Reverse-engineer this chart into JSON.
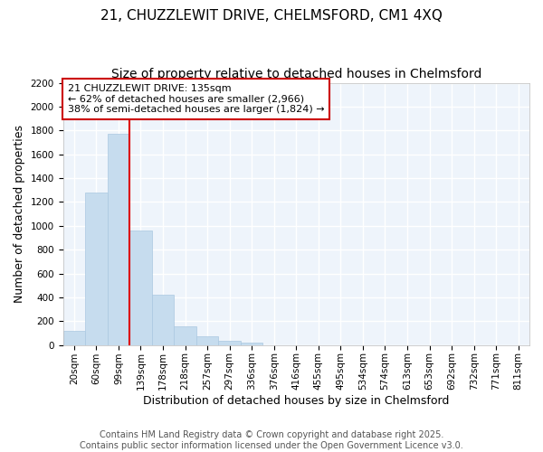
{
  "title_line1": "21, CHUZZLEWIT DRIVE, CHELMSFORD, CM1 4XQ",
  "title_line2": "Size of property relative to detached houses in Chelmsford",
  "xlabel": "Distribution of detached houses by size in Chelmsford",
  "ylabel": "Number of detached properties",
  "bar_color": "#c6dcee",
  "bar_edge_color": "#aac8e0",
  "bg_color": "#eef4fb",
  "grid_color": "#ffffff",
  "categories": [
    "20sqm",
    "60sqm",
    "99sqm",
    "139sqm",
    "178sqm",
    "218sqm",
    "257sqm",
    "297sqm",
    "336sqm",
    "376sqm",
    "416sqm",
    "455sqm",
    "495sqm",
    "534sqm",
    "574sqm",
    "613sqm",
    "653sqm",
    "692sqm",
    "732sqm",
    "771sqm",
    "811sqm"
  ],
  "values": [
    120,
    1280,
    1770,
    960,
    420,
    155,
    75,
    35,
    20,
    0,
    0,
    0,
    0,
    0,
    0,
    0,
    0,
    0,
    0,
    0,
    0
  ],
  "ylim": [
    0,
    2200
  ],
  "yticks": [
    0,
    200,
    400,
    600,
    800,
    1000,
    1200,
    1400,
    1600,
    1800,
    2000,
    2200
  ],
  "property_label": "21 CHUZZLEWIT DRIVE: 135sqm",
  "annotation_line1": "← 62% of detached houses are smaller (2,966)",
  "annotation_line2": "38% of semi-detached houses are larger (1,824) →",
  "vline_color": "#dd0000",
  "vline_x_bin": 2.5,
  "annotation_box_color": "#ffffff",
  "annotation_box_edge": "#cc0000",
  "footer_line1": "Contains HM Land Registry data © Crown copyright and database right 2025.",
  "footer_line2": "Contains public sector information licensed under the Open Government Licence v3.0.",
  "title_fontsize": 11,
  "subtitle_fontsize": 10,
  "tick_fontsize": 7.5,
  "xlabel_fontsize": 9,
  "ylabel_fontsize": 9,
  "footer_fontsize": 7,
  "annot_fontsize": 8
}
